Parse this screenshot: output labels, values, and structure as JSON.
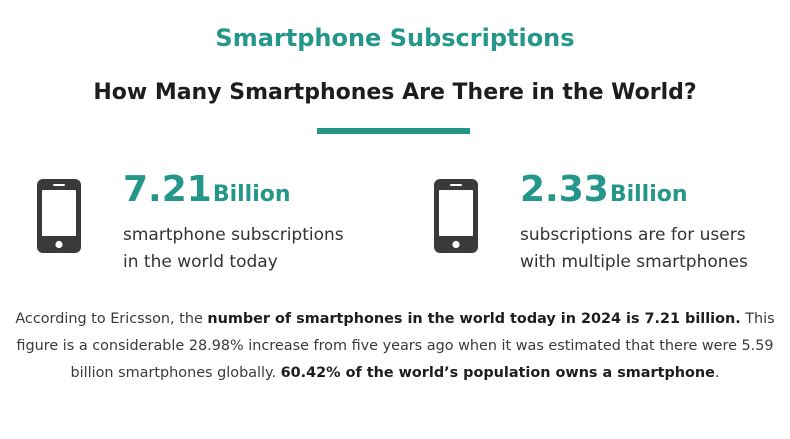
{
  "header": {
    "kicker": "Smartphone Subscriptions",
    "title": "How Many Smartphones Are There in the World?"
  },
  "stats": [
    {
      "icon": "smartphone-icon",
      "number": "7.21",
      "unit": "Billion",
      "line1": "smartphone subscriptions",
      "line2": "in the world today"
    },
    {
      "icon": "smartphone-icon",
      "number": "2.33",
      "unit": "Billion",
      "line1": "subscriptions are for users",
      "line2": "with multiple smartphones"
    }
  ],
  "paragraph": {
    "p1": "According to Ericsson, the ",
    "b1": "number of smartphones in the world today in 2024 is 7.21 billion.",
    "p2": " This figure is a considerable 28.98% increase from five years ago when it was estimated that there were 5.59 billion smartphones globally. ",
    "b2": "60.42% of the world’s population owns a smartphone",
    "p3": "."
  },
  "colors": {
    "accent": "#24978a",
    "icon": "#3a3a3a",
    "text": "#2b2b2b"
  }
}
